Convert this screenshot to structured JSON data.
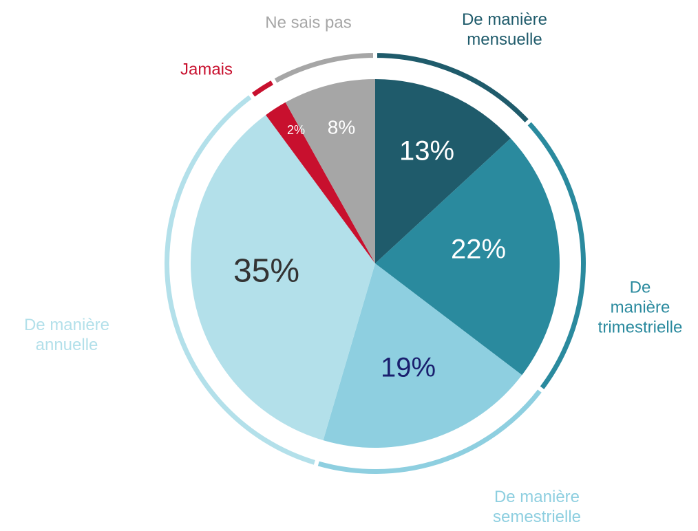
{
  "chart_data": {
    "type": "pie",
    "categories": [
      "De manière\nmensuelle",
      "De manière\ntrimestrielle",
      "De manière\nsemestrielle",
      "De manière\nannuelle",
      "Jamais",
      "Ne sais pas"
    ],
    "values": [
      13,
      22,
      19,
      35,
      2,
      8
    ],
    "value_labels": [
      "13%",
      "22%",
      "19%",
      "35%",
      "2%",
      "8%"
    ],
    "colors": [
      "#1f5b6b",
      "#2a8a9e",
      "#8ecfe0",
      "#b3e0ea",
      "#c8102e",
      "#a6a6a6"
    ]
  }
}
